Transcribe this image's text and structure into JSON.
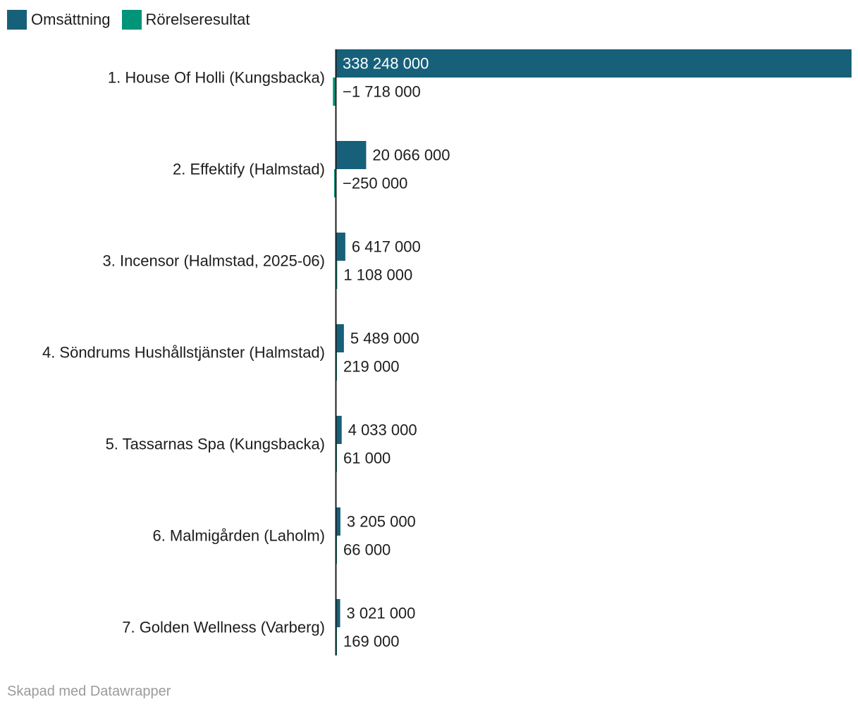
{
  "legend": [
    {
      "label": "Omsättning",
      "color": "#17607a"
    },
    {
      "label": "Rörelseresultat",
      "color": "#009478"
    }
  ],
  "footer": "Skapad med Datawrapper",
  "chart_data": {
    "type": "bar",
    "orientation": "horizontal",
    "grouped": true,
    "categories": [
      "1. House Of Holli (Kungsbacka)",
      "2. Effektify (Halmstad)",
      "3. Incensor (Halmstad, 2025-06)",
      "4. Söndrums Hushållstjänster (Halmstad)",
      "5. Tassarnas Spa (Kungsbacka)",
      "6. Malmigården (Laholm)",
      "7. Golden Wellness (Varberg)"
    ],
    "series": [
      {
        "name": "Omsättning",
        "color": "#17607a",
        "values": [
          338248000,
          20066000,
          6417000,
          5489000,
          4033000,
          3205000,
          3021000
        ],
        "labels": [
          "338 248 000",
          "20 066 000",
          "6 417 000",
          "5 489 000",
          "4 033 000",
          "3 205 000",
          "3 021 000"
        ]
      },
      {
        "name": "Rörelseresultat",
        "color": "#009478",
        "values": [
          -1718000,
          -250000,
          1108000,
          219000,
          61000,
          66000,
          169000
        ],
        "labels": [
          "−1 718 000",
          "−250 000",
          "1 108 000",
          "219 000",
          "61 000",
          "66 000",
          "169 000"
        ]
      }
    ],
    "xlim": [
      -1718000,
      338248000
    ],
    "grid": false,
    "legend_position": "top-left"
  }
}
